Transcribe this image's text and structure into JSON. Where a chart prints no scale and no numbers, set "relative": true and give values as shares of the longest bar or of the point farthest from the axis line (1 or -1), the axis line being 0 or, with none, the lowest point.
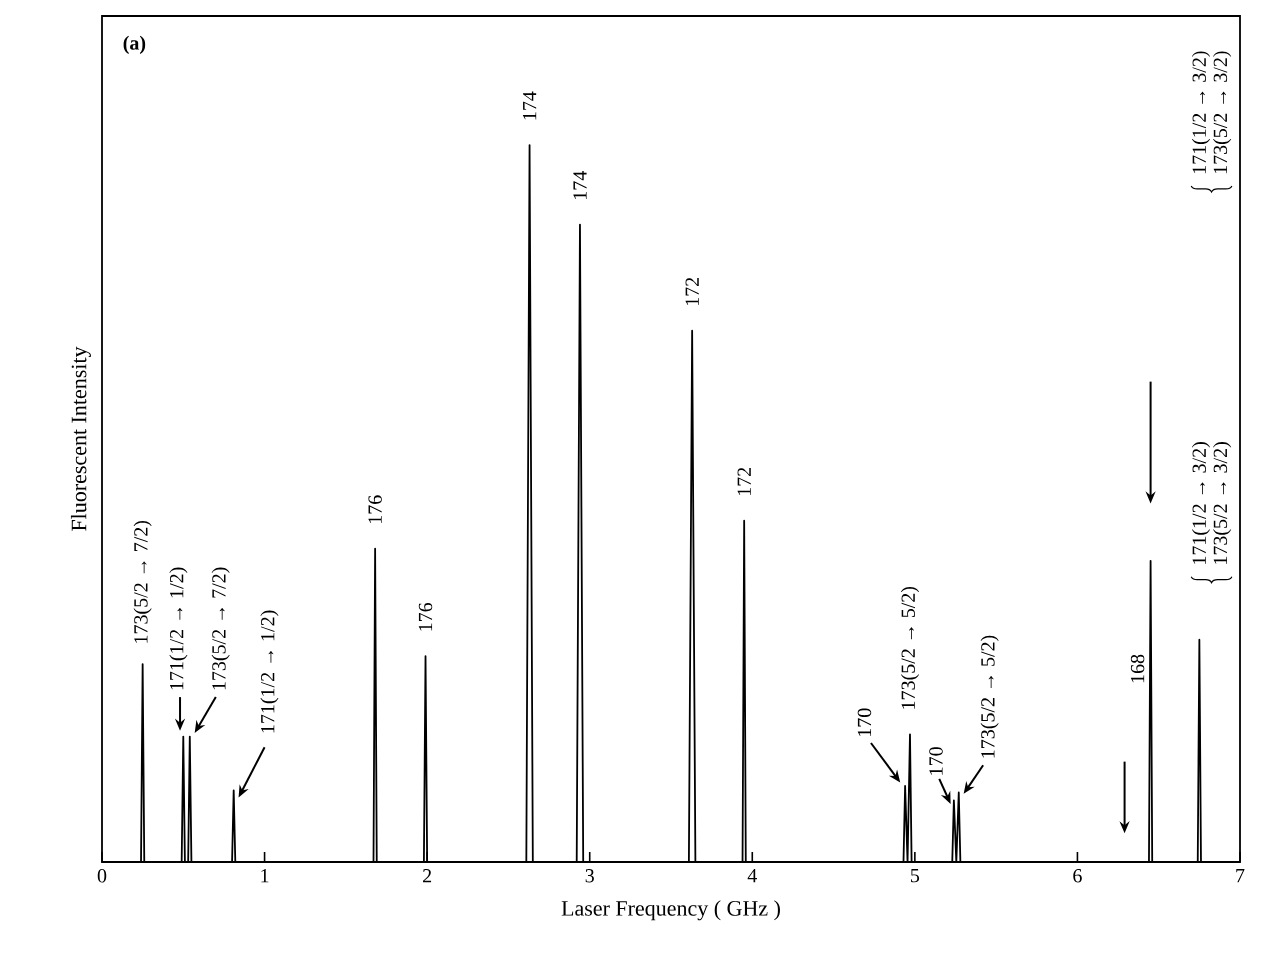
{
  "chart_data": {
    "type": "line",
    "title": "(a)",
    "xlabel": "Laser Frequency ( GHz )",
    "ylabel": "Fluorescent Intensity",
    "relative": true,
    "tick_labels": "x",
    "xlim": [
      0,
      7
    ],
    "xticks": [
      0,
      1,
      2,
      3,
      4,
      5,
      6,
      7
    ],
    "series": [
      {
        "color": "#000000",
        "x": [
          0,
          0.24,
          0.25,
          0.26,
          0.49,
          0.5,
          0.51,
          0.53,
          0.54,
          0.55,
          0.8,
          0.81,
          0.82,
          1.67,
          1.68,
          1.69,
          1.98,
          1.99,
          2.0,
          2.61,
          2.63,
          2.65,
          2.92,
          2.94,
          2.96,
          3.61,
          3.63,
          3.65,
          3.94,
          3.95,
          3.96,
          4.93,
          4.94,
          4.955,
          4.97,
          4.98,
          5.23,
          5.24,
          5.255,
          5.27,
          5.28,
          6.44,
          6.45,
          6.46,
          6.74,
          6.75,
          6.76,
          7
        ],
        "values": [
          0,
          0,
          0.276,
          0,
          0,
          0.175,
          0,
          0,
          0.175,
          0,
          0,
          0.1,
          0,
          0,
          0.437,
          0,
          0,
          0.287,
          0,
          0,
          1.0,
          0,
          0,
          0.889,
          0,
          0,
          0.741,
          0,
          0,
          0.476,
          0,
          0,
          0.106,
          0,
          0.178,
          0,
          0,
          0.086,
          0,
          0.097,
          0,
          0,
          0.42,
          0,
          0,
          0.31,
          0,
          0
        ]
      }
    ],
    "annotations": [
      {
        "text": "173(5/2 → 7/2)",
        "x": 0.25,
        "y": 0.276
      },
      {
        "text": "171(1/2 → 1/2)",
        "x": 0.5,
        "y": 0.175
      },
      {
        "text": "173(5/2 → 7/2)",
        "x": 0.54,
        "y": 0.175
      },
      {
        "text": "171(1/2 → 1/2)",
        "x": 0.81,
        "y": 0.1
      },
      {
        "text": "176",
        "x": 1.68,
        "y": 0.437
      },
      {
        "text": "176",
        "x": 1.99,
        "y": 0.287
      },
      {
        "text": "174",
        "x": 2.63,
        "y": 1.0
      },
      {
        "text": "174",
        "x": 2.94,
        "y": 0.889
      },
      {
        "text": "172",
        "x": 3.63,
        "y": 0.741
      },
      {
        "text": "172",
        "x": 3.95,
        "y": 0.476
      },
      {
        "text": "170",
        "x": 4.94,
        "y": 0.106
      },
      {
        "text": "173(5/2 → 5/2)",
        "x": 4.97,
        "y": 0.178
      },
      {
        "text": "170",
        "x": 5.24,
        "y": 0.086
      },
      {
        "text": "173(5/2 → 5/2)",
        "x": 5.27,
        "y": 0.097
      },
      "168",
      "171(1/2 → 3/2)",
      "173(5/2 → 3/2)",
      "171(1/2 → 3/2)",
      "173(5/2 → 3/2)"
    ]
  }
}
